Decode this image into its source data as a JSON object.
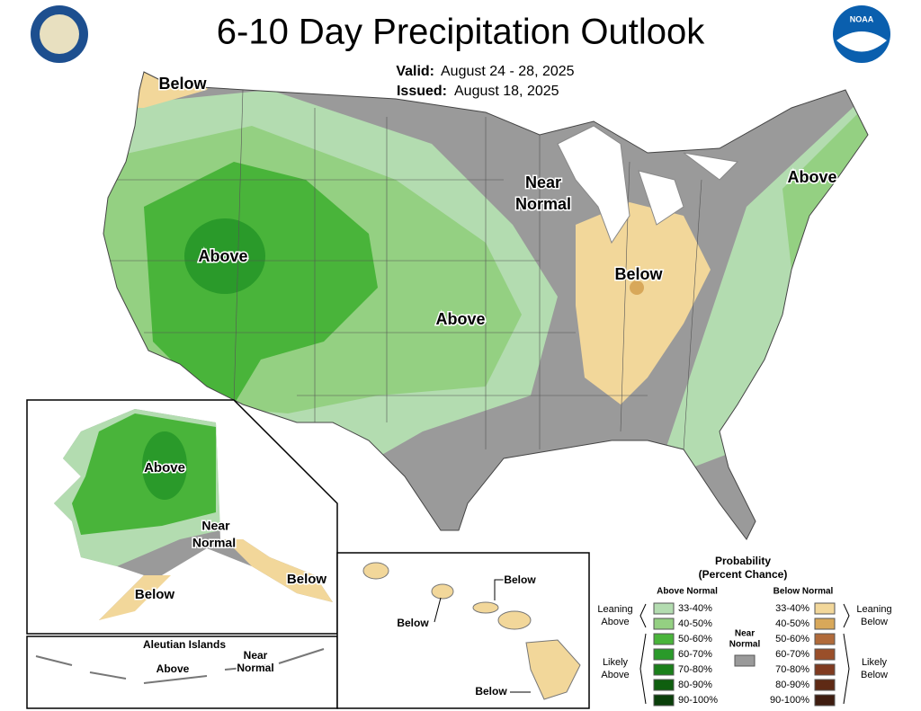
{
  "header": {
    "title": "6-10 Day Precipitation Outlook",
    "valid_label": "Valid:",
    "valid": "August 24 - 28, 2025",
    "issued_label": "Issued:",
    "issued": "August 18, 2025",
    "logo_right": "NOAA"
  },
  "conus_labels": [
    "Below",
    "Above",
    "Above",
    "Near",
    "Normal",
    "Below",
    "Above"
  ],
  "alaska_labels": [
    "Above",
    "Near",
    "Normal",
    "Below",
    "Below"
  ],
  "aleutian": {
    "title": "Aleutian Islands",
    "labels": [
      "Above",
      "Near",
      "Normal"
    ]
  },
  "hawaii_labels": [
    "Below",
    "Below",
    "Below"
  ],
  "legend": {
    "title": "Probability",
    "subtitle": "(Percent Chance)",
    "above_heading": "Above Normal",
    "below_heading": "Below Normal",
    "near": [
      "Near",
      "Normal"
    ],
    "near_color": "#9a9a9a",
    "above_bins": [
      "33-40%",
      "40-50%",
      "50-60%",
      "60-70%",
      "70-80%",
      "80-90%",
      "90-100%"
    ],
    "above_colors": [
      "#b3dcb0",
      "#94d082",
      "#49b43a",
      "#2a9a2a",
      "#1a7f1a",
      "#0f5f0f",
      "#0a3f0a"
    ],
    "below_bins": [
      "33-40%",
      "40-50%",
      "50-60%",
      "60-70%",
      "70-80%",
      "80-90%",
      "90-100%"
    ],
    "below_colors": [
      "#f2d79a",
      "#d8a85a",
      "#b06a3a",
      "#9a4f2a",
      "#7f3a20",
      "#5f2a15",
      "#3f1d10"
    ],
    "groups": {
      "leaning_above": [
        "Leaning",
        "Above"
      ],
      "likely_above": [
        "Likely",
        "Above"
      ],
      "leaning_below": [
        "Leaning",
        "Below"
      ],
      "likely_below": [
        "Likely",
        "Below"
      ]
    }
  }
}
